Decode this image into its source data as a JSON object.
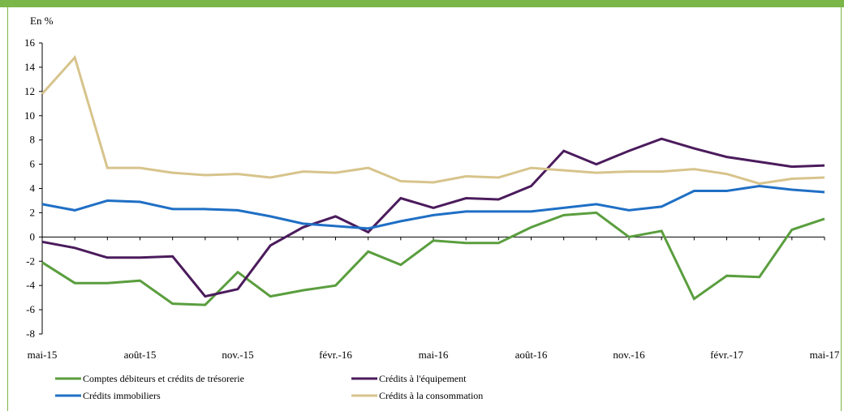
{
  "theme": {
    "frame_color": "#7ab648"
  },
  "chart_data": {
    "type": "line",
    "ylabel": "En %",
    "ylim": [
      -8,
      16
    ],
    "yticks": [
      -8,
      -6,
      -4,
      -2,
      0,
      2,
      4,
      6,
      8,
      10,
      12,
      14,
      16
    ],
    "x_tick_labels": [
      "mai-15",
      "août-15",
      "nov.-15",
      "févr.-16",
      "mai-16",
      "août-16",
      "nov.-16",
      "févr.-17",
      "mai-17"
    ],
    "x": [
      "mai-15",
      "juin-15",
      "juil.-15",
      "août-15",
      "sept.-15",
      "oct.-15",
      "nov.-15",
      "déc.-15",
      "janv.-16",
      "févr.-16",
      "mars-16",
      "avr.-16",
      "mai-16",
      "juin-16",
      "juil.-16",
      "août-16",
      "sept.-16",
      "oct.-16",
      "nov.-16",
      "déc.-16",
      "janv.-17",
      "févr.-17",
      "mars-17",
      "avr.-17",
      "mai-17"
    ],
    "legend_position": "bottom",
    "series": [
      {
        "name": "Comptes débiteurs et crédits de trésorerie",
        "color": "#5a9e3e",
        "values": [
          -2.1,
          -3.8,
          -3.8,
          -3.6,
          -5.5,
          -5.6,
          -2.9,
          -4.9,
          -4.4,
          -4.0,
          -1.2,
          -2.3,
          -0.3,
          -0.5,
          -0.5,
          0.8,
          1.8,
          2.0,
          0.0,
          0.5,
          -5.1,
          -3.2,
          -3.3,
          0.6,
          1.5
        ]
      },
      {
        "name": "Crédits à l'équipement",
        "color": "#4b1b5c",
        "values": [
          -0.4,
          -0.9,
          -1.7,
          -1.7,
          -1.6,
          -4.9,
          -4.3,
          -0.7,
          0.8,
          1.7,
          0.4,
          3.2,
          2.4,
          3.2,
          3.1,
          4.2,
          7.1,
          6.0,
          7.1,
          8.1,
          7.3,
          6.6,
          6.2,
          5.8,
          5.9
        ]
      },
      {
        "name": "Crédits immobiliers",
        "color": "#1f6fc5",
        "values": [
          2.7,
          2.2,
          3.0,
          2.9,
          2.3,
          2.3,
          2.2,
          1.7,
          1.1,
          0.9,
          0.7,
          1.3,
          1.8,
          2.1,
          2.1,
          2.1,
          2.4,
          2.7,
          2.2,
          2.5,
          3.8,
          3.8,
          4.2,
          3.9,
          3.7
        ]
      },
      {
        "name": "Crédits à la consommation",
        "color": "#d7c48c",
        "values": [
          11.8,
          14.8,
          5.7,
          5.7,
          5.3,
          5.1,
          5.2,
          4.9,
          5.4,
          5.3,
          5.7,
          4.6,
          4.5,
          5.0,
          4.9,
          5.7,
          5.5,
          5.3,
          5.4,
          5.4,
          5.6,
          5.2,
          4.4,
          4.8,
          4.9
        ]
      }
    ]
  }
}
